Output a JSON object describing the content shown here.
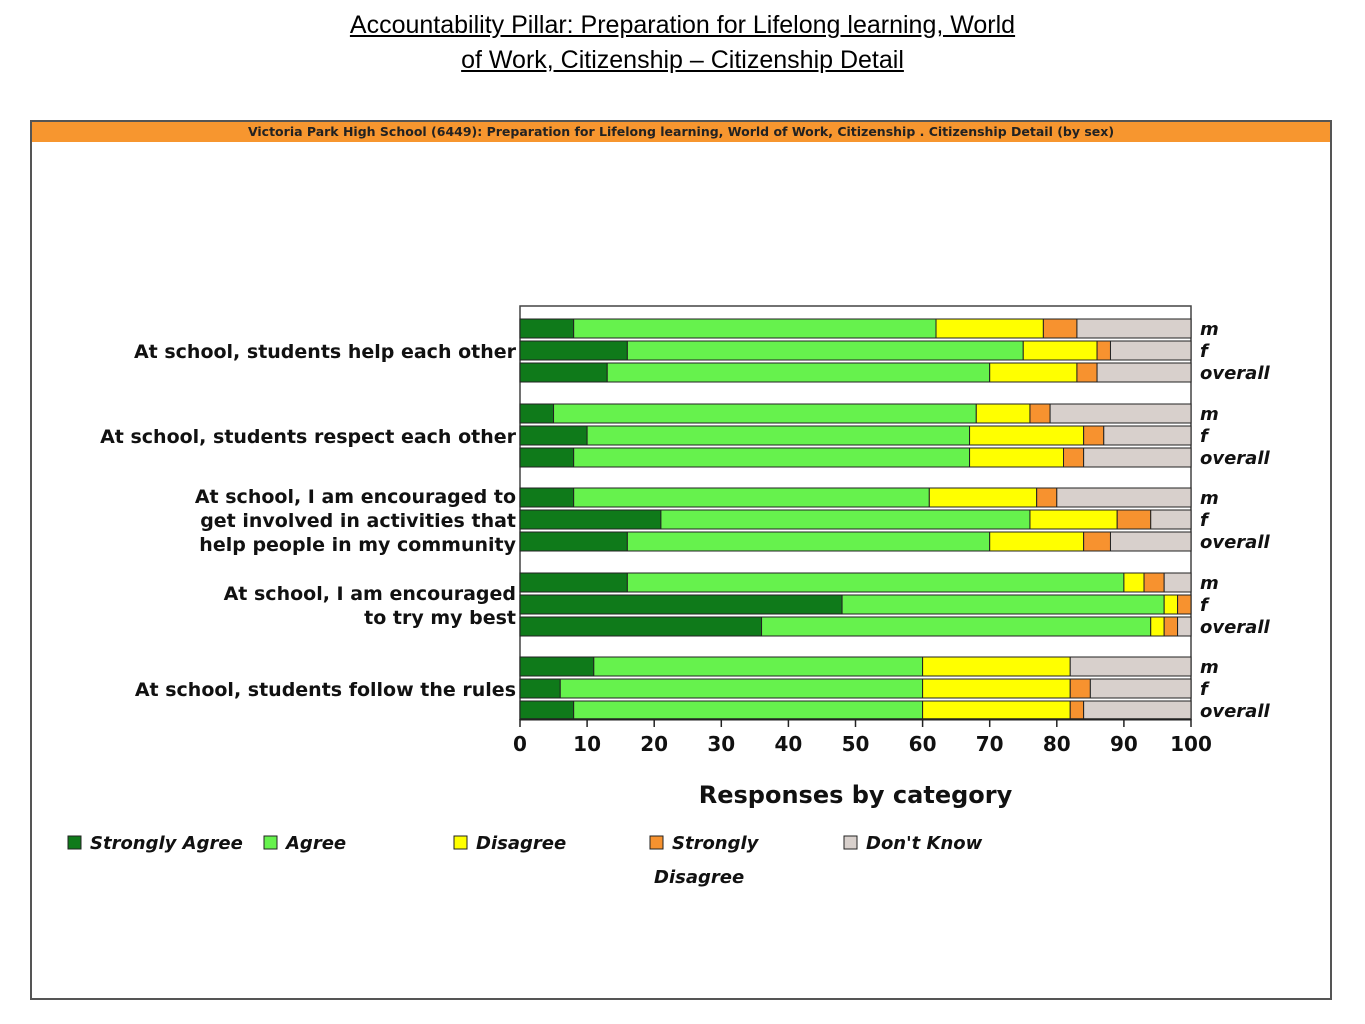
{
  "page": {
    "title_line1": "Accountability Pillar:  Preparation for Lifelong learning, World",
    "title_line2": "of Work, Citizenship – Citizenship Detail"
  },
  "chart_data": {
    "type": "bar",
    "orientation": "horizontal",
    "stacked": true,
    "title": "Victoria Park High School (6449): Preparation for Lifelong learning, World of Work, Citizenship . Citizenship Detail (by sex)",
    "xlabel": "Responses by category",
    "xlim": [
      0,
      100
    ],
    "xticks": [
      0,
      10,
      20,
      30,
      40,
      50,
      60,
      70,
      80,
      90,
      100
    ],
    "row_labels": [
      "m",
      "f",
      "overall"
    ],
    "legend_position": "bottom",
    "categories": [
      {
        "lines": [
          "At school, students help each other"
        ]
      },
      {
        "lines": [
          "At school, students respect each other"
        ]
      },
      {
        "lines": [
          "At school, I am encouraged to",
          "get involved in activities that",
          "help people in my community"
        ]
      },
      {
        "lines": [
          "At school, I am encouraged",
          "to try my best"
        ]
      },
      {
        "lines": [
          "At school, students follow the rules"
        ]
      }
    ],
    "series": [
      {
        "name": "Strongly Agree",
        "color": "#0f7a1a",
        "values": [
          [
            8,
            16,
            13
          ],
          [
            5,
            10,
            8
          ],
          [
            8,
            21,
            16
          ],
          [
            16,
            48,
            36
          ],
          [
            11,
            6,
            8
          ]
        ]
      },
      {
        "name": "Agree",
        "color": "#66f24d",
        "values": [
          [
            54,
            59,
            57
          ],
          [
            63,
            57,
            59
          ],
          [
            53,
            55,
            54
          ],
          [
            74,
            48,
            58
          ],
          [
            49,
            54,
            52
          ]
        ]
      },
      {
        "name": "Disagree",
        "color": "#ffff00",
        "values": [
          [
            16,
            11,
            13
          ],
          [
            8,
            17,
            14
          ],
          [
            16,
            13,
            14
          ],
          [
            3,
            2,
            2
          ],
          [
            22,
            22,
            22
          ]
        ]
      },
      {
        "name": "Strongly Disagree",
        "legend_lines": [
          "Strongly",
          "Disagree"
        ],
        "color": "#f7922f",
        "values": [
          [
            5,
            2,
            3
          ],
          [
            3,
            3,
            3
          ],
          [
            3,
            5,
            4
          ],
          [
            3,
            2,
            2
          ],
          [
            0,
            3,
            2
          ]
        ]
      },
      {
        "name": "Don't Know",
        "color": "#d8d0cc",
        "values": [
          [
            17,
            12,
            14
          ],
          [
            21,
            13,
            16
          ],
          [
            20,
            6,
            12
          ],
          [
            4,
            0,
            2
          ],
          [
            18,
            15,
            16
          ]
        ]
      }
    ]
  }
}
